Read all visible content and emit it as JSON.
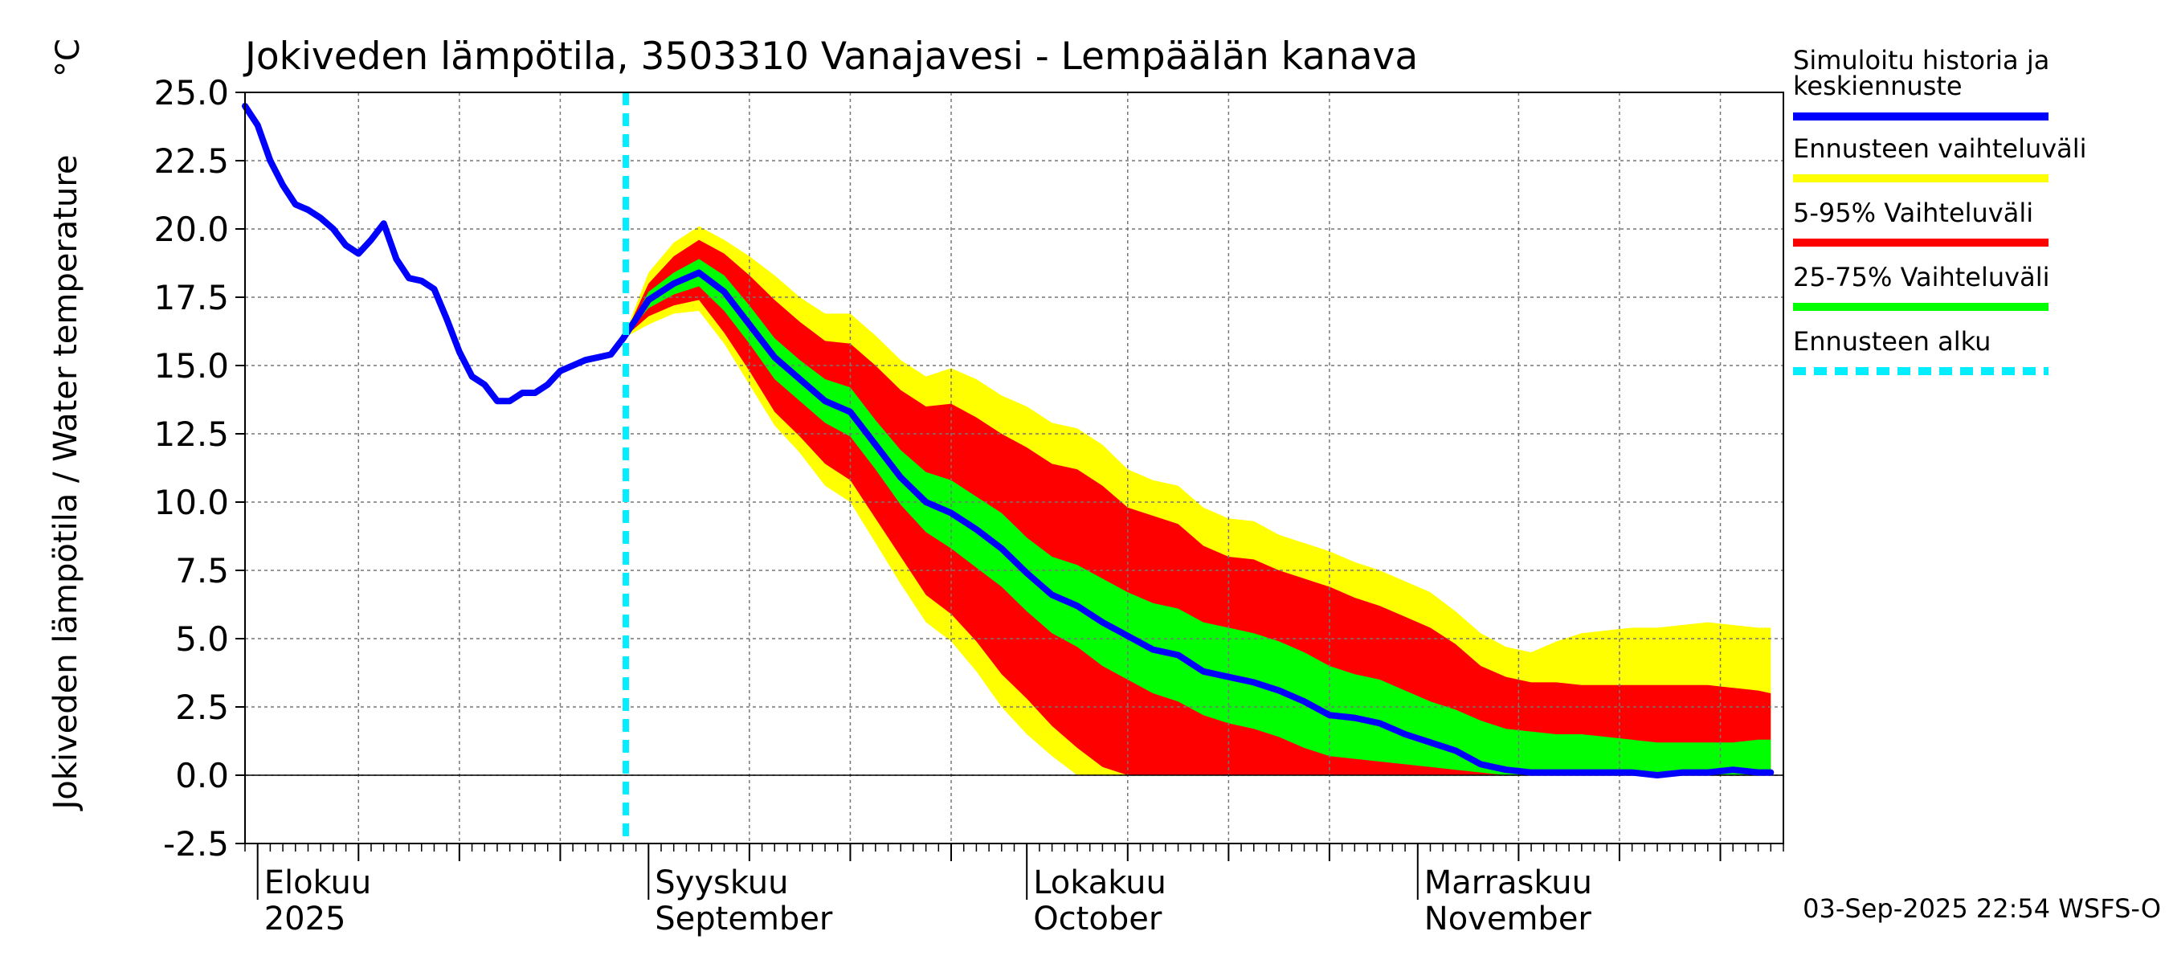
{
  "chart_data": {
    "type": "line",
    "title": "Jokiveden lämpötila, 3503310 Vanajavesi - Lempäälän kanava",
    "unit": "°C",
    "ylabel": "Jokiveden lämpötila / Water temperature",
    "ylim": [
      -2.5,
      25.0
    ],
    "yticks": [
      -2.5,
      0.0,
      2.5,
      5.0,
      7.5,
      10.0,
      12.5,
      15.0,
      17.5,
      20.0,
      22.5,
      25.0
    ],
    "ytick_labels": [
      "-2.5",
      "0.0",
      "2.5",
      "5.0",
      "7.5",
      "10.0",
      "12.5",
      "15.0",
      "17.5",
      "20.0",
      "22.5",
      "25.0"
    ],
    "x_start": "2025-07-31",
    "x_end": "2025-11-29",
    "month_labels": [
      {
        "day": 1,
        "line1": "Elokuu",
        "line2": "2025"
      },
      {
        "day": 32,
        "line1": "Syyskuu",
        "line2": "September"
      },
      {
        "day": 62,
        "line1": "Lokakuu",
        "line2": "October"
      },
      {
        "day": 93,
        "line1": "Marraskuu",
        "line2": "November"
      }
    ],
    "forecast_start_day": 30.2,
    "history": {
      "name": "Simuloitu historia ja keskiennuste",
      "x": [
        0,
        1,
        2,
        3,
        4,
        5,
        6,
        7,
        8,
        9,
        10,
        11,
        12,
        13,
        14,
        15,
        16,
        17,
        18,
        19,
        20,
        21,
        22,
        23,
        24,
        25,
        26,
        27,
        28,
        29,
        30
      ],
      "y": [
        24.5,
        23.8,
        22.5,
        21.6,
        20.9,
        20.7,
        20.4,
        20.0,
        19.4,
        19.1,
        19.6,
        20.2,
        18.9,
        18.2,
        18.1,
        17.8,
        16.7,
        15.5,
        14.6,
        14.3,
        13.7,
        13.7,
        14.0,
        14.0,
        14.3,
        14.8,
        15.0,
        15.2,
        15.3,
        15.4,
        16.0
      ]
    },
    "forecast": {
      "x": [
        30,
        32,
        34,
        36,
        38,
        40,
        42,
        44,
        46,
        48,
        50,
        52,
        54,
        56,
        58,
        60,
        62,
        64,
        66,
        68,
        70,
        72,
        74,
        76,
        78,
        80,
        82,
        84,
        86,
        88,
        90,
        92,
        94,
        96,
        98,
        100,
        102,
        104,
        106,
        108,
        110,
        112,
        114,
        116,
        118,
        120,
        121
      ],
      "median": [
        16.0,
        17.4,
        18.0,
        18.4,
        17.7,
        16.5,
        15.3,
        14.5,
        13.7,
        13.3,
        12.1,
        10.9,
        10.0,
        9.6,
        9.0,
        8.3,
        7.4,
        6.6,
        6.2,
        5.6,
        5.1,
        4.6,
        4.4,
        3.8,
        3.6,
        3.4,
        3.1,
        2.7,
        2.2,
        2.1,
        1.9,
        1.5,
        1.2,
        0.9,
        0.4,
        0.2,
        0.1,
        0.1,
        0.1,
        0.1,
        0.1,
        0.0,
        0.1,
        0.1,
        0.2,
        0.1,
        0.1
      ],
      "p25": [
        16.0,
        17.1,
        17.6,
        17.9,
        17.0,
        15.8,
        14.5,
        13.7,
        12.9,
        12.4,
        11.2,
        9.9,
        8.9,
        8.3,
        7.6,
        6.9,
        6.0,
        5.2,
        4.7,
        4.0,
        3.5,
        3.0,
        2.7,
        2.2,
        1.9,
        1.7,
        1.4,
        1.0,
        0.7,
        0.6,
        0.5,
        0.4,
        0.3,
        0.2,
        0.1,
        0.0,
        0.0,
        0.0,
        0.0,
        0.0,
        0.0,
        0.0,
        0.0,
        0.0,
        0.0,
        0.0,
        0.0
      ],
      "p75": [
        16.0,
        17.7,
        18.4,
        18.9,
        18.3,
        17.2,
        16.0,
        15.2,
        14.5,
        14.2,
        13.0,
        11.9,
        11.1,
        10.8,
        10.2,
        9.6,
        8.7,
        8.0,
        7.7,
        7.2,
        6.7,
        6.3,
        6.1,
        5.6,
        5.4,
        5.2,
        4.9,
        4.5,
        4.0,
        3.7,
        3.5,
        3.1,
        2.7,
        2.4,
        2.0,
        1.7,
        1.6,
        1.5,
        1.5,
        1.4,
        1.3,
        1.2,
        1.2,
        1.2,
        1.2,
        1.3,
        1.3
      ],
      "p5": [
        16.0,
        16.8,
        17.2,
        17.4,
        16.2,
        14.8,
        13.3,
        12.4,
        11.4,
        10.8,
        9.4,
        8.0,
        6.6,
        5.9,
        4.9,
        3.7,
        2.8,
        1.8,
        1.0,
        0.3,
        0.0,
        0.0,
        0.0,
        0.0,
        0.0,
        0.0,
        0.0,
        0.0,
        0.0,
        0.0,
        0.0,
        0.0,
        0.0,
        0.0,
        0.0,
        0.0,
        0.0,
        0.0,
        0.0,
        0.0,
        0.0,
        0.0,
        0.0,
        0.0,
        0.0,
        0.0,
        0.0
      ],
      "p95": [
        16.0,
        18.0,
        19.0,
        19.6,
        19.1,
        18.3,
        17.4,
        16.6,
        15.9,
        15.8,
        15.0,
        14.1,
        13.5,
        13.6,
        13.1,
        12.5,
        12.0,
        11.4,
        11.2,
        10.6,
        9.8,
        9.5,
        9.2,
        8.4,
        8.0,
        7.9,
        7.5,
        7.2,
        6.9,
        6.5,
        6.2,
        5.8,
        5.4,
        4.8,
        4.0,
        3.6,
        3.4,
        3.4,
        3.3,
        3.3,
        3.3,
        3.3,
        3.3,
        3.3,
        3.2,
        3.1,
        3.0
      ],
      "min": [
        16.0,
        16.5,
        16.9,
        17.0,
        15.8,
        14.3,
        12.8,
        11.8,
        10.6,
        10.0,
        8.5,
        7.0,
        5.6,
        4.9,
        3.8,
        2.5,
        1.5,
        0.7,
        0.0,
        0.0,
        0.0,
        0.0,
        0.0,
        0.0,
        0.0,
        0.0,
        0.0,
        0.0,
        0.0,
        0.0,
        0.0,
        0.0,
        0.0,
        0.0,
        0.0,
        0.0,
        0.0,
        0.0,
        0.0,
        0.0,
        0.0,
        0.0,
        0.0,
        0.0,
        0.0,
        0.0,
        0.0
      ],
      "max": [
        16.0,
        18.4,
        19.5,
        20.1,
        19.6,
        19.0,
        18.3,
        17.5,
        16.9,
        16.9,
        16.1,
        15.2,
        14.6,
        14.9,
        14.5,
        13.9,
        13.5,
        12.9,
        12.7,
        12.1,
        11.2,
        10.8,
        10.6,
        9.8,
        9.4,
        9.3,
        8.8,
        8.5,
        8.2,
        7.8,
        7.5,
        7.1,
        6.7,
        6.0,
        5.2,
        4.7,
        4.5,
        4.9,
        5.2,
        5.3,
        5.4,
        5.4,
        5.5,
        5.6,
        5.5,
        5.4,
        5.4
      ]
    },
    "legend": [
      {
        "label": "Simuloitu historia ja keskiennuste",
        "color": "#0000ff",
        "style": "solid"
      },
      {
        "label": "Ennusteen vaihteluväli",
        "color": "#ffff00",
        "style": "solid"
      },
      {
        "label": "5-95% Vaihteluväli",
        "color": "#ff0000",
        "style": "solid"
      },
      {
        "label": "25-75% Vaihteluväli",
        "color": "#00ff00",
        "style": "solid"
      },
      {
        "label": "Ennusteen alku",
        "color": "#00eeff",
        "style": "dashed"
      }
    ],
    "legend_position": "right",
    "footer": "03-Sep-2025 22:54 WSFS-O"
  }
}
